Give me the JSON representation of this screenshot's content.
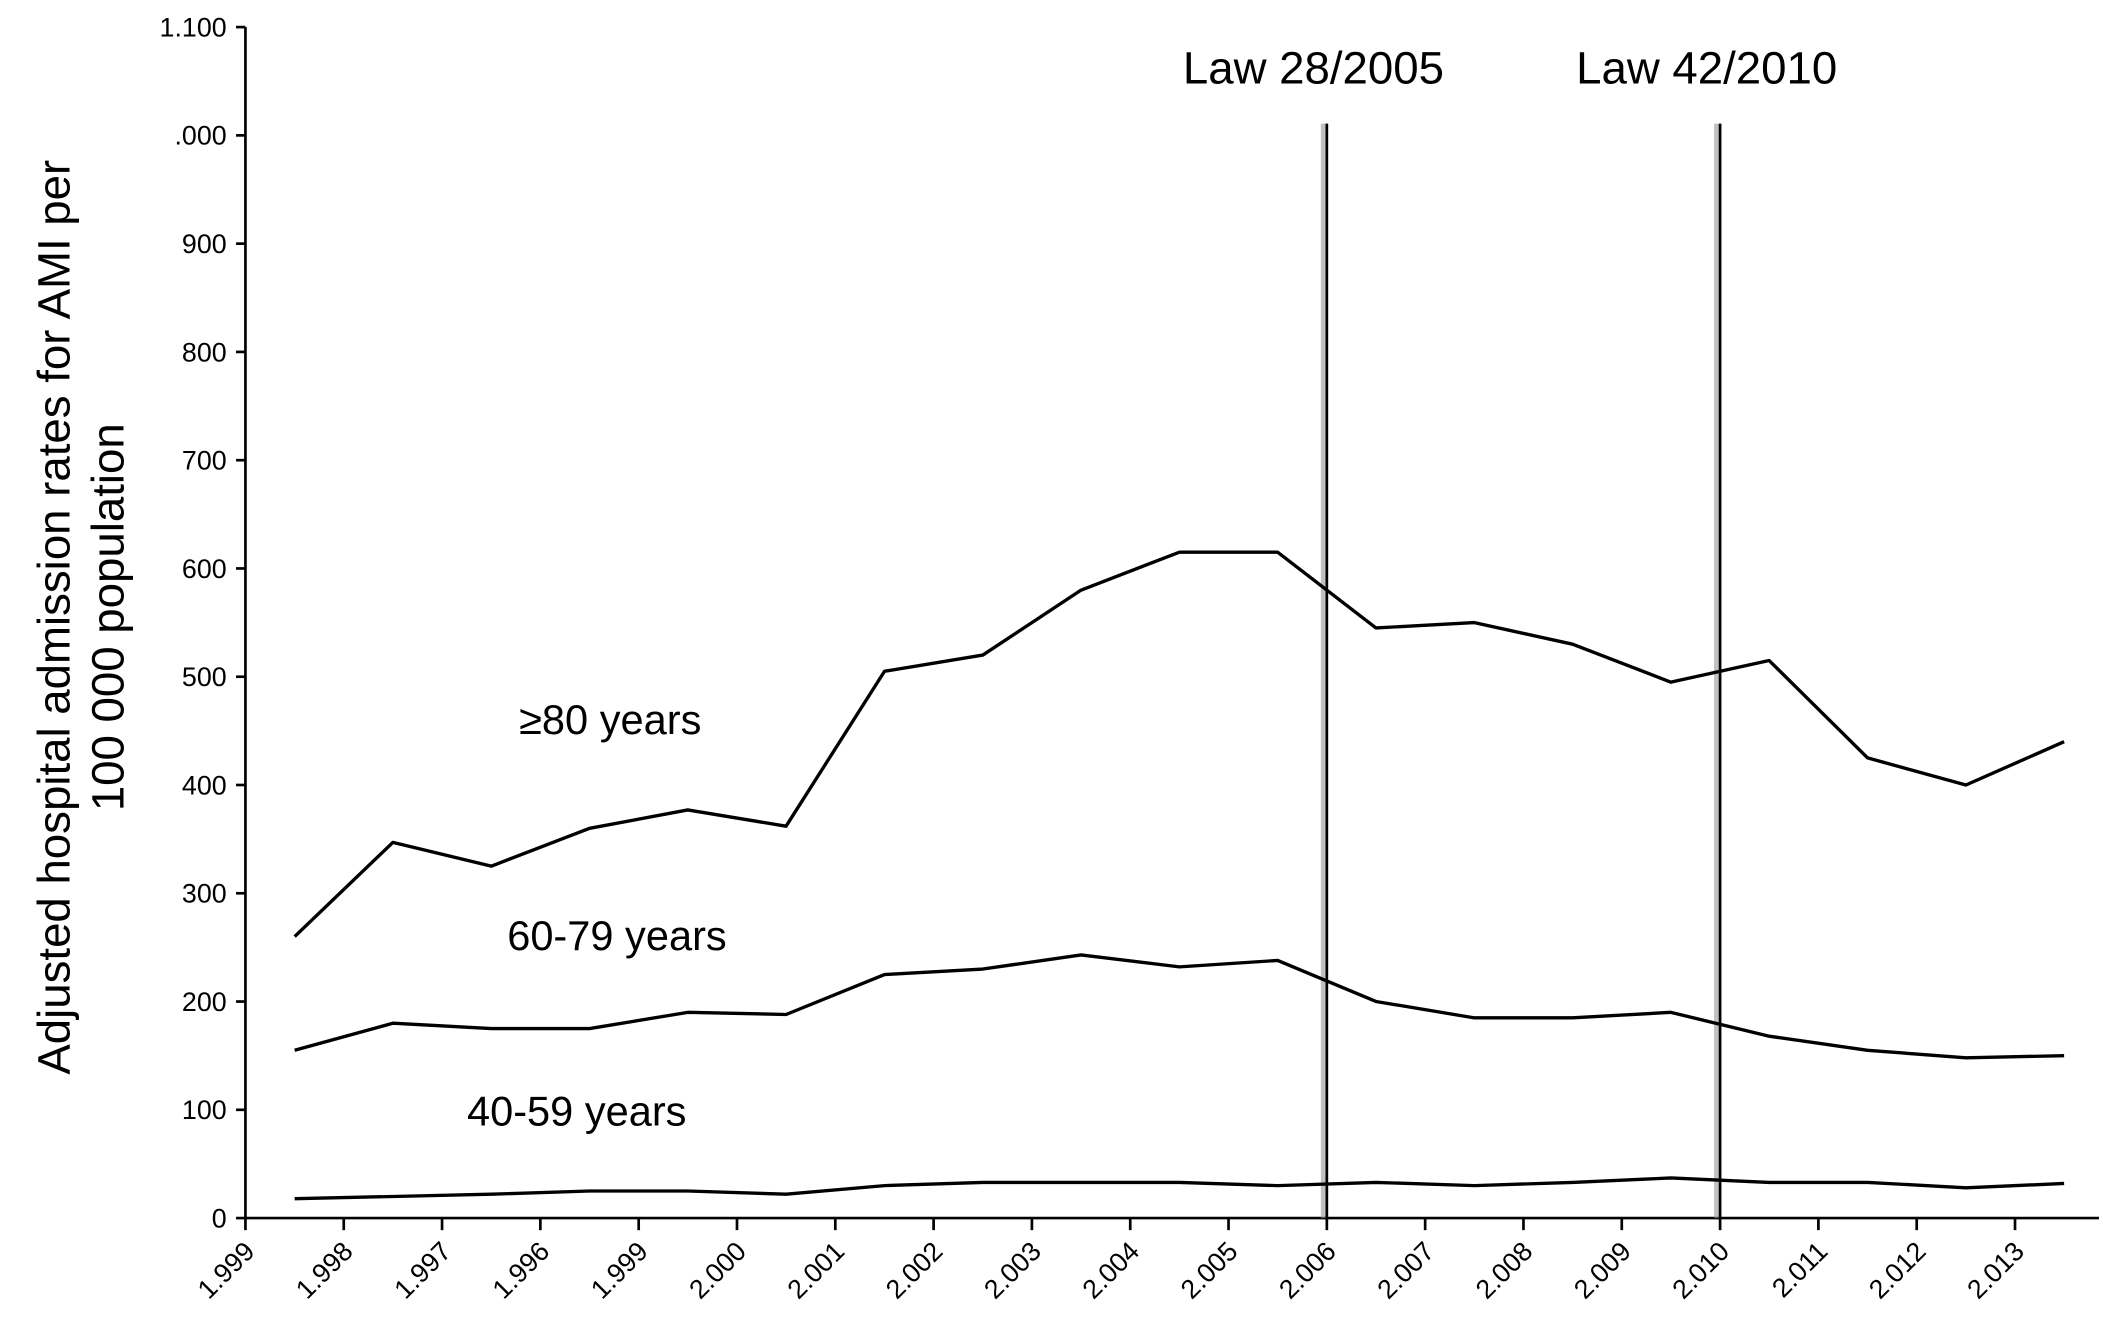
{
  "chart_data": {
    "type": "line",
    "y_label": [
      "Adjusted hospital admission rates for AMI per",
      "100 000 population"
    ],
    "categories": [
      "1.999",
      "1.998",
      "1.997",
      "1.996",
      "1.999",
      "2.000",
      "2.001",
      "2.002",
      "2.003",
      "2.004",
      "2.005",
      "2.006",
      "2.007",
      "2.008",
      "2.009",
      "2.010",
      "2.011",
      "2.012",
      "2.013"
    ],
    "series": [
      {
        "name": "≥80 years",
        "color": "#000000",
        "values": [
          260,
          347,
          325,
          360,
          377,
          362,
          505,
          520,
          580,
          615,
          615,
          545,
          550,
          530,
          495,
          515,
          425,
          400,
          440
        ]
      },
      {
        "name": "60-79 years",
        "color": "#000000",
        "values": [
          155,
          180,
          175,
          175,
          190,
          188,
          225,
          230,
          243,
          232,
          238,
          200,
          185,
          185,
          190,
          168,
          155,
          148,
          150
        ]
      },
      {
        "name": "40-59 years",
        "color": "#000000",
        "values": [
          18,
          20,
          22,
          25,
          25,
          22,
          30,
          33,
          33,
          33,
          30,
          33,
          30,
          33,
          37,
          33,
          33,
          28,
          32
        ]
      }
    ],
    "ylim": [
      0,
      1100
    ],
    "yticks": [
      0,
      100,
      200,
      300,
      400,
      500,
      600,
      700,
      800,
      900,
      {
        "value": 1000,
        "label": ".000"
      },
      {
        "value": 1100,
        "label": "1.100"
      }
    ],
    "annotations": [
      {
        "text": "Law 28/2005",
        "category": "2.006"
      },
      {
        "text": "Law 42/2010",
        "category": "2.010"
      }
    ]
  }
}
